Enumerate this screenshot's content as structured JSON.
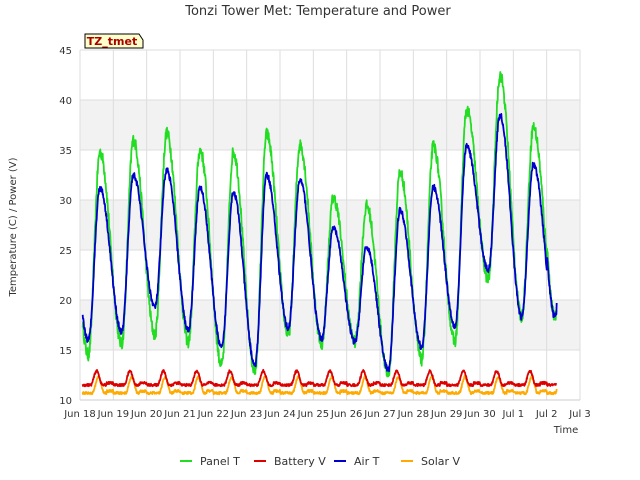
{
  "chart_data": {
    "type": "line",
    "title": "Tonzi Tower Met: Temperature and Power",
    "xlabel": "Time",
    "ylabel": "Temperature (C) / Power (V)",
    "badge": "TZ_tmet",
    "xlim": [
      0,
      15
    ],
    "ylim": [
      10,
      45
    ],
    "yticks": [
      10,
      15,
      20,
      25,
      30,
      35,
      40,
      45
    ],
    "xticks": [
      {
        "label": "Jun 18",
        "x": 0
      },
      {
        "label": "Jun 19",
        "x": 1
      },
      {
        "label": "Jun 20",
        "x": 2
      },
      {
        "label": "Jun 21",
        "x": 3
      },
      {
        "label": "Jun 22",
        "x": 4
      },
      {
        "label": "Jun 23",
        "x": 5
      },
      {
        "label": "Jun 24",
        "x": 6
      },
      {
        "label": "Jun 25",
        "x": 7
      },
      {
        "label": "Jun 26",
        "x": 8
      },
      {
        "label": "Jun 27",
        "x": 9
      },
      {
        "label": "Jun 28",
        "x": 10
      },
      {
        "label": "Jun 29",
        "x": 11
      },
      {
        "label": "Jun 30",
        "x": 12
      },
      {
        "label": "Jul 1",
        "x": 13
      },
      {
        "label": "Jul 2",
        "x": 14
      },
      {
        "label": "Jul 3",
        "x": 15
      }
    ],
    "daily_extremes": {
      "air_t_max": [
        31.2,
        32.5,
        33.0,
        31.2,
        30.8,
        32.5,
        32.0,
        27.2,
        25.3,
        29.0,
        31.3,
        35.4,
        38.5,
        33.6
      ],
      "air_t_min": [
        16.0,
        16.8,
        19.3,
        17.0,
        15.2,
        13.5,
        17.2,
        16.1,
        15.8,
        13.0,
        15.3,
        17.4,
        23.0,
        18.3
      ],
      "panel_t_max": [
        34.8,
        36.0,
        36.7,
        35.0,
        34.8,
        36.6,
        35.5,
        30.2,
        29.4,
        32.8,
        35.4,
        39.0,
        42.5,
        37.3
      ],
      "panel_t_min": [
        14.5,
        15.6,
        16.5,
        15.8,
        13.5,
        12.8,
        16.5,
        15.6,
        15.8,
        12.5,
        14.0,
        15.8,
        22.0,
        18.3
      ],
      "battery_v_max": 12.9,
      "battery_v_min": 11.5,
      "solar_v_max": 12.3,
      "solar_v_min": 10.7,
      "last_values": {
        "panel_t": 19.0,
        "air_t": 19.7,
        "battery_v": 11.6,
        "solar_v": 11.1
      }
    },
    "series": [
      {
        "name": "Panel T",
        "color": "#22dd22"
      },
      {
        "name": "Battery V",
        "color": "#dd0000"
      },
      {
        "name": "Air T",
        "color": "#0000cc"
      },
      {
        "name": "Solar V",
        "color": "#ffaa00"
      }
    ],
    "x_end": 14.3,
    "grid": true,
    "legend_position": "bottom"
  }
}
